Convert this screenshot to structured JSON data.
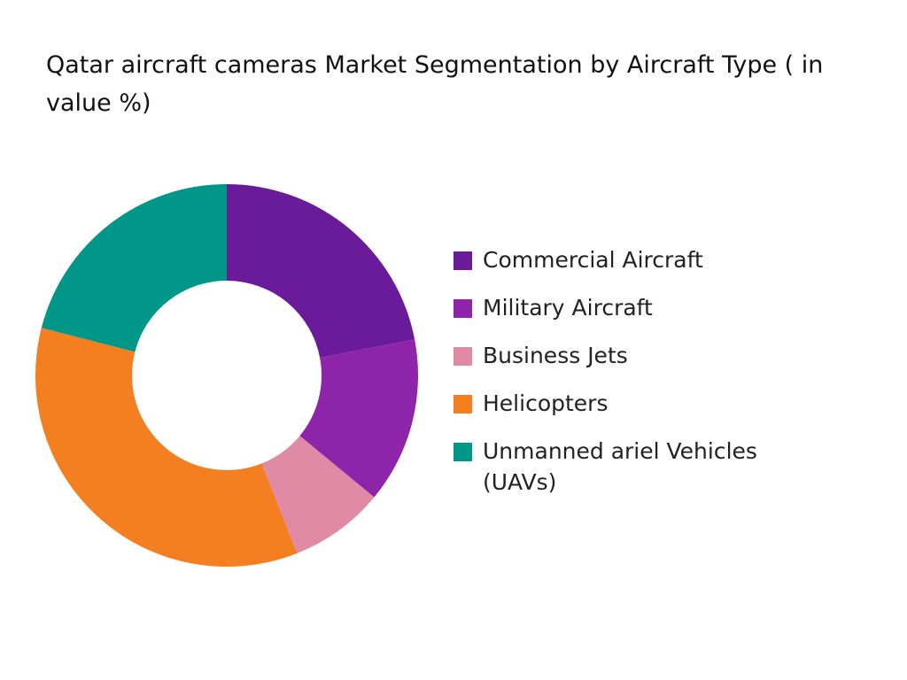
{
  "chart_data": {
    "type": "pie",
    "title": "Qatar aircraft cameras Market Segmentation by Aircraft Type ( in value %)",
    "categories": [
      "Commercial Aircraft",
      "Military Aircraft",
      "Business Jets",
      "Helicopters",
      "Unmanned ariel Vehicles (UAVs)"
    ],
    "values": [
      22,
      14,
      8,
      35,
      21
    ],
    "colors": [
      "#6a1b9a",
      "#8e24aa",
      "#e08aa5",
      "#f47f20",
      "#009688"
    ],
    "legend": "right"
  }
}
